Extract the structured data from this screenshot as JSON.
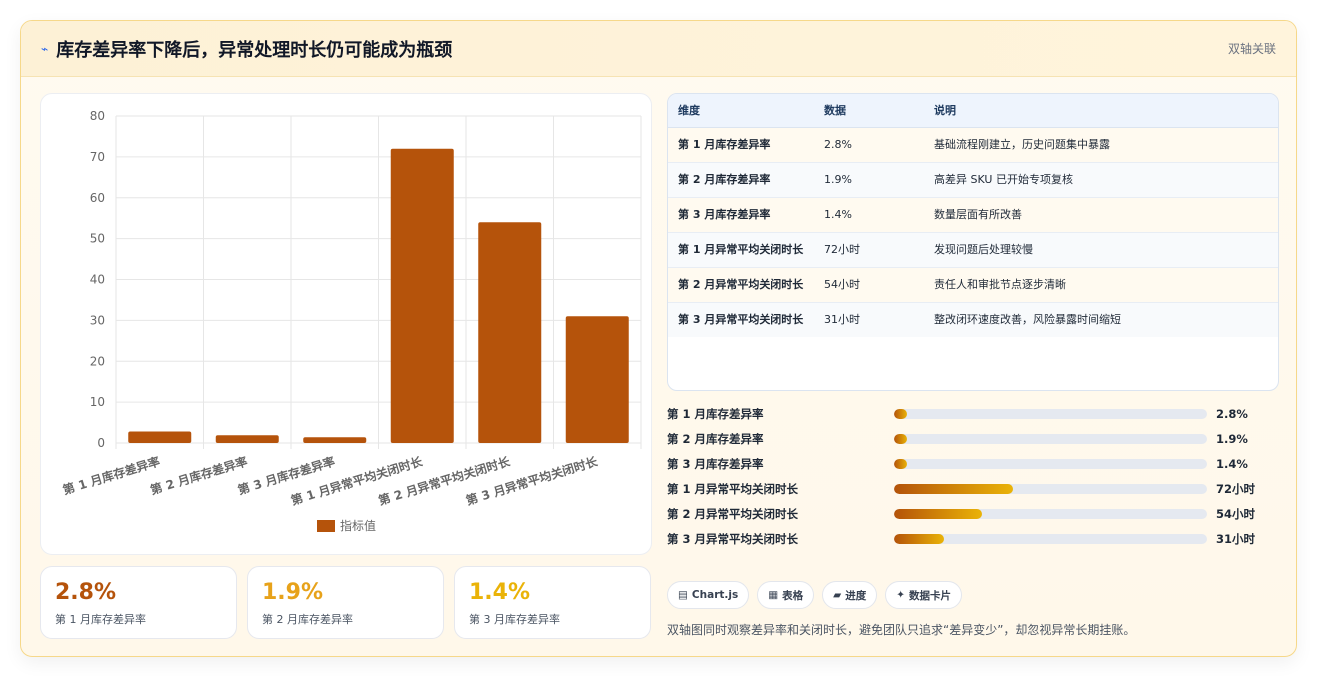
{
  "header": {
    "icon": "trend-icon",
    "title": "库存差异率下降后，异常处理时长仍可能成为瓶颈",
    "tag": "双轴关联"
  },
  "chart_data": {
    "type": "bar",
    "categories": [
      "第 1 月库存差异率",
      "第 2 月库存差异率",
      "第 3 月库存差异率",
      "第 1 月异常平均关闭时长",
      "第 2 月异常平均关闭时长",
      "第 3 月异常平均关闭时长"
    ],
    "series": [
      {
        "name": "指标值",
        "values": [
          2.8,
          1.9,
          1.4,
          72,
          54,
          31
        ]
      }
    ],
    "ylim": [
      0,
      80
    ],
    "yticks": [
      0,
      10,
      20,
      30,
      40,
      50,
      60,
      70,
      80
    ],
    "legend": "bottom",
    "grid": true,
    "color": "#b5530b"
  },
  "kpis": [
    {
      "value": "2.8%",
      "label": "第 1 月库存差异率",
      "color": "#b5530b"
    },
    {
      "value": "1.9%",
      "label": "第 2 月库存差异率",
      "color": "#e7a21a"
    },
    {
      "value": "1.4%",
      "label": "第 3 月库存差异率",
      "color": "#eab308"
    }
  ],
  "table": {
    "headers": [
      "维度",
      "数据",
      "说明"
    ],
    "rows": [
      [
        "第 1 月库存差异率",
        "2.8%",
        "基础流程刚建立，历史问题集中暴露"
      ],
      [
        "第 2 月库存差异率",
        "1.9%",
        "高差异 SKU 已开始专项复核"
      ],
      [
        "第 3 月库存差异率",
        "1.4%",
        "数量层面有所改善"
      ],
      [
        "第 1 月异常平均关闭时长",
        "72小时",
        "发现问题后处理较慢"
      ],
      [
        "第 2 月异常平均关闭时长",
        "54小时",
        "责任人和审批节点逐步清晰"
      ],
      [
        "第 3 月异常平均关闭时长",
        "31小时",
        "整改闭环速度改善，风险暴露时间缩短"
      ]
    ]
  },
  "progress": [
    {
      "label": "第 1 月库存差异率",
      "value": "2.8%",
      "fraction": 0.04
    },
    {
      "label": "第 2 月库存差异率",
      "value": "1.9%",
      "fraction": 0.04
    },
    {
      "label": "第 3 月库存差异率",
      "value": "1.4%",
      "fraction": 0.04
    },
    {
      "label": "第 1 月异常平均关闭时长",
      "value": "72小时",
      "fraction": 0.38
    },
    {
      "label": "第 2 月异常平均关闭时长",
      "value": "54小时",
      "fraction": 0.28
    },
    {
      "label": "第 3 月异常平均关闭时长",
      "value": "31小时",
      "fraction": 0.16
    }
  ],
  "chips": [
    {
      "icon": "▤",
      "icon_name": "chart-icon",
      "label": "Chart.js"
    },
    {
      "icon": "▦",
      "icon_name": "table-icon",
      "label": "表格"
    },
    {
      "icon": "▰",
      "icon_name": "progress-icon",
      "label": "进度"
    },
    {
      "icon": "✦",
      "icon_name": "sparkle-icon",
      "label": "数据卡片"
    }
  ],
  "note": "双轴图同时观察差异率和关闭时长，避免团队只追求“差异变少”，却忽视异常长期挂账。"
}
